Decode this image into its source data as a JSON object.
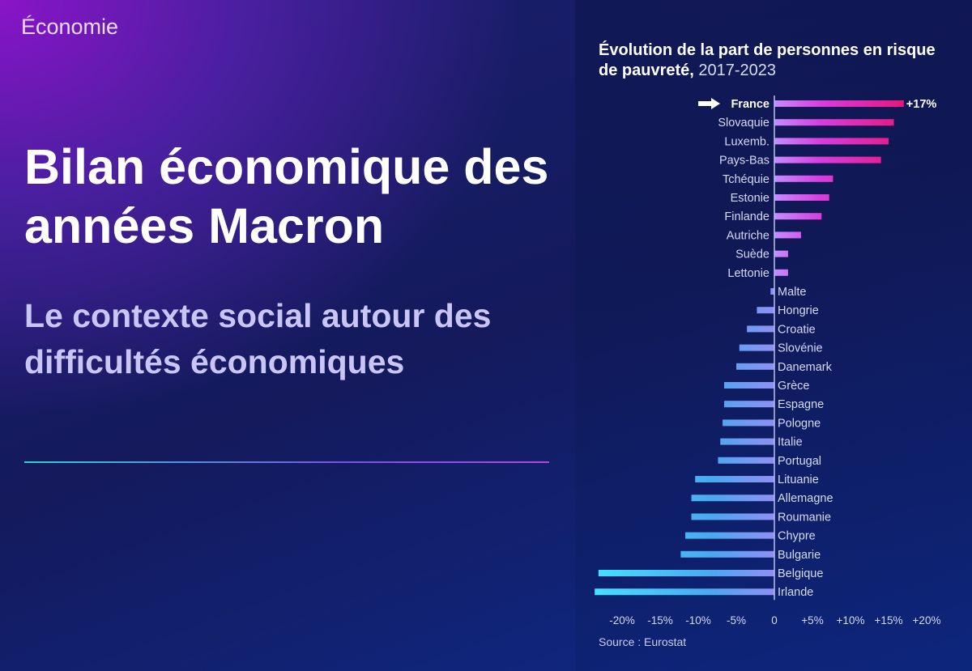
{
  "section": "Économie",
  "title": "Bilan économique des années Macron",
  "subtitle": "Le contexte social autour des difficultés économiques",
  "source": "Source : Eurostat",
  "colors": {
    "positive": "#e8157a",
    "positive_mid": "#d83ce0",
    "negative": "#4aa8f0",
    "negative_far": "#44e0ff",
    "highlight_arrow": "#ffffff"
  },
  "chart_data": {
    "type": "bar",
    "orientation": "horizontal",
    "title_bold": "Évolution de la part de personnes en risque de pauvreté,",
    "title_light": "2017-2023",
    "highlight": "France",
    "highlight_label": "+17%",
    "categories": [
      "France",
      "Slovaquie",
      "Luxemb.",
      "Pays-Bas",
      "Tchéquie",
      "Estonie",
      "Finlande",
      "Autriche",
      "Suède",
      "Lettonie",
      "Malte",
      "Hongrie",
      "Croatie",
      "Slovénie",
      "Danemark",
      "Grèce",
      "Espagne",
      "Pologne",
      "Italie",
      "Portugal",
      "Lituanie",
      "Allemagne",
      "Roumanie",
      "Chypre",
      "Bulgarie",
      "Belgique",
      "Irlande"
    ],
    "values": [
      17,
      15.7,
      15,
      14,
      7.7,
      7.2,
      6.2,
      3.5,
      1.8,
      1.8,
      -0.5,
      -2.3,
      -3.6,
      -4.6,
      -5,
      -6.6,
      -6.6,
      -6.8,
      -7.1,
      -7.4,
      -10.4,
      -10.9,
      -10.9,
      -11.7,
      -12.3,
      -23.1,
      -23.6
    ],
    "xlim": [
      -23,
      20
    ],
    "xticks": [
      "-20%",
      "-15%",
      "-10%",
      "-5%",
      "0",
      "+5%",
      "+10%",
      "+15%",
      "+20%"
    ],
    "xtick_values": [
      -20,
      -15,
      -10,
      -5,
      0,
      5,
      10,
      15,
      20
    ],
    "grid": false
  }
}
